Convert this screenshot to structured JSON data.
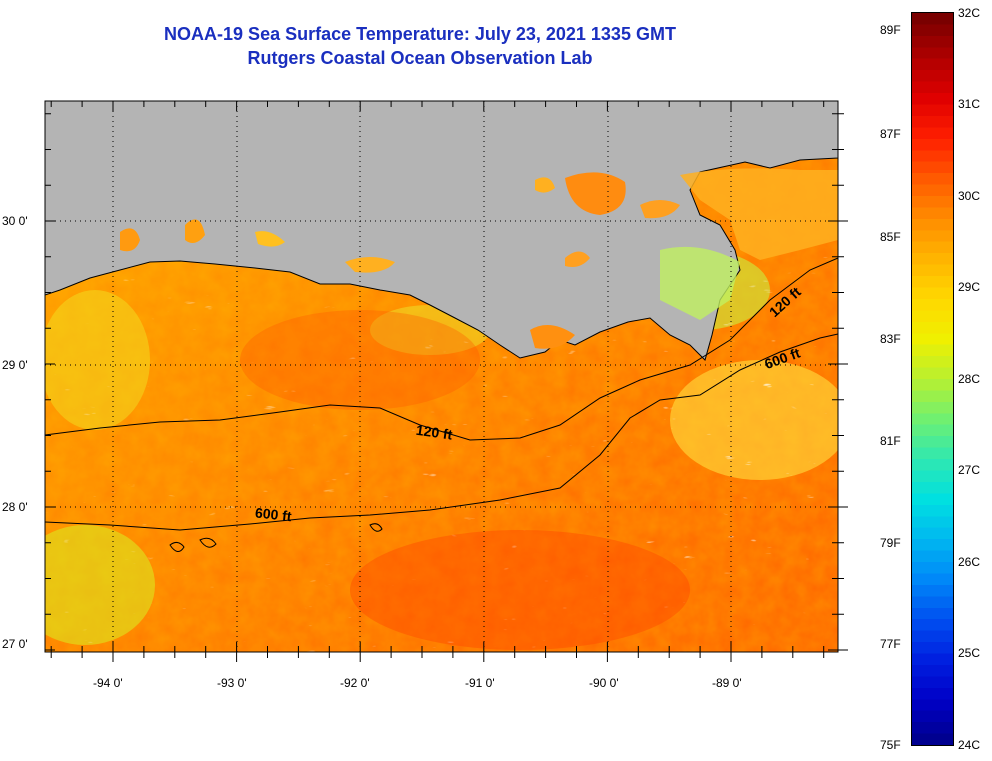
{
  "title": {
    "line1": "NOAA-19 Sea Surface Temperature:  July 23, 2021 1335 GMT",
    "line2": "Rutgers Coastal Ocean Observation Lab"
  },
  "map": {
    "lat_labels": [
      "30 0'",
      "29 0'",
      "28 0'",
      "27 0'"
    ],
    "lon_labels": [
      "-94 0'",
      "-93 0'",
      "-92 0'",
      "-91 0'",
      "-90 0'",
      "-89 0'"
    ],
    "contour_labels": [
      "120 ft",
      "600 ft",
      "120 ft",
      "600 ft"
    ],
    "colors": {
      "land": "#b4b4b4",
      "cloud": "#ffffff",
      "grid": "#000000"
    }
  },
  "colorbar": {
    "fahrenheit_labels": [
      "89F",
      "87F",
      "85F",
      "83F",
      "81F",
      "79F",
      "77F",
      "75F"
    ],
    "celsius_labels": [
      "32C",
      "31C",
      "30C",
      "29C",
      "28C",
      "27C",
      "26C",
      "25C",
      "24C"
    ],
    "range_c": [
      24,
      32
    ]
  }
}
